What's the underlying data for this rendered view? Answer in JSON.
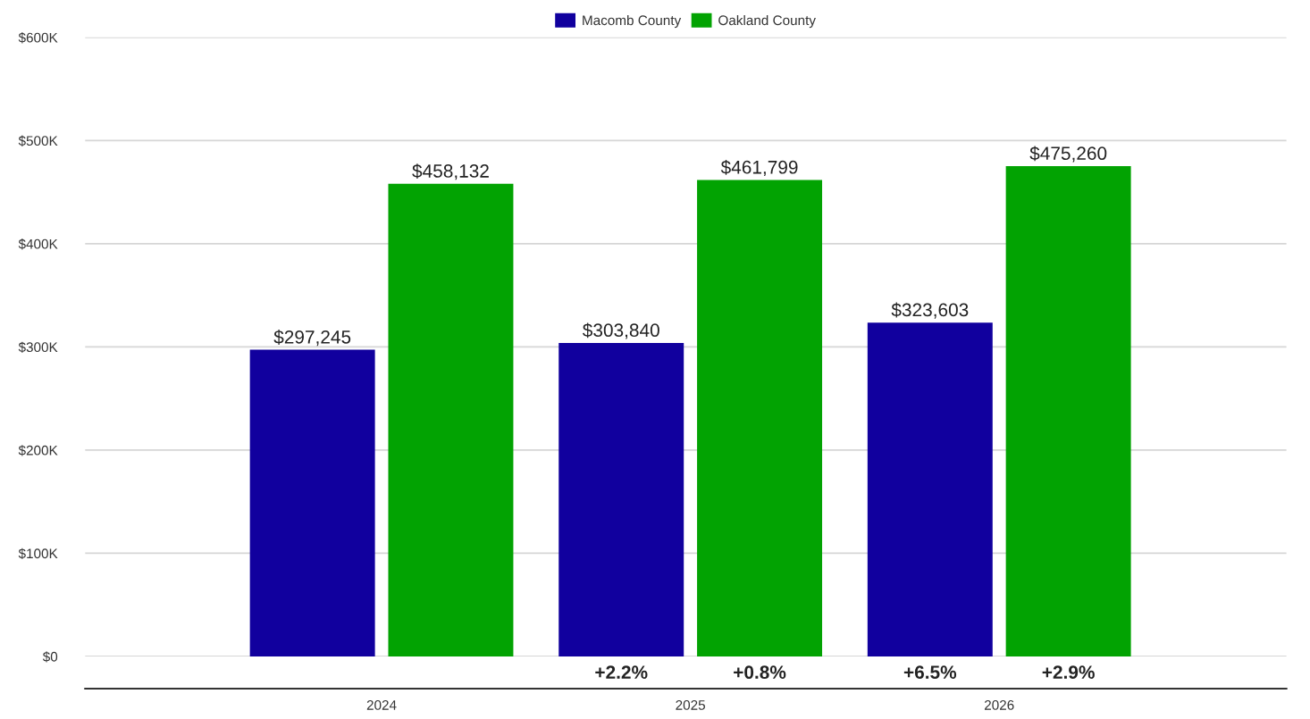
{
  "chart_data": {
    "type": "bar",
    "categories": [
      "2024",
      "2025",
      "2026"
    ],
    "series": [
      {
        "name": "Macomb County",
        "color": "#11009e",
        "values": [
          297245,
          303840,
          323603
        ],
        "value_labels": [
          "$297,245",
          "$303,840",
          "$323,603"
        ]
      },
      {
        "name": "Oakland County",
        "color": "#02a302",
        "values": [
          458132,
          461799,
          475260
        ],
        "value_labels": [
          "$458,132",
          "$461,799",
          "$475,260"
        ]
      }
    ],
    "ylim": [
      0,
      600000
    ],
    "yticks": [
      {
        "value": 0,
        "label": "$0"
      },
      {
        "value": 100000,
        "label": "$100K"
      },
      {
        "value": 200000,
        "label": "$200K"
      },
      {
        "value": 300000,
        "label": "$300K"
      },
      {
        "value": 400000,
        "label": "$400K"
      },
      {
        "value": 500000,
        "label": "$500K"
      },
      {
        "value": 600000,
        "label": "$600K"
      }
    ],
    "annotations": [
      "+2.2%",
      "+0.8%",
      "+6.5%",
      "+2.9%"
    ],
    "grid": "y",
    "legend": "top"
  }
}
